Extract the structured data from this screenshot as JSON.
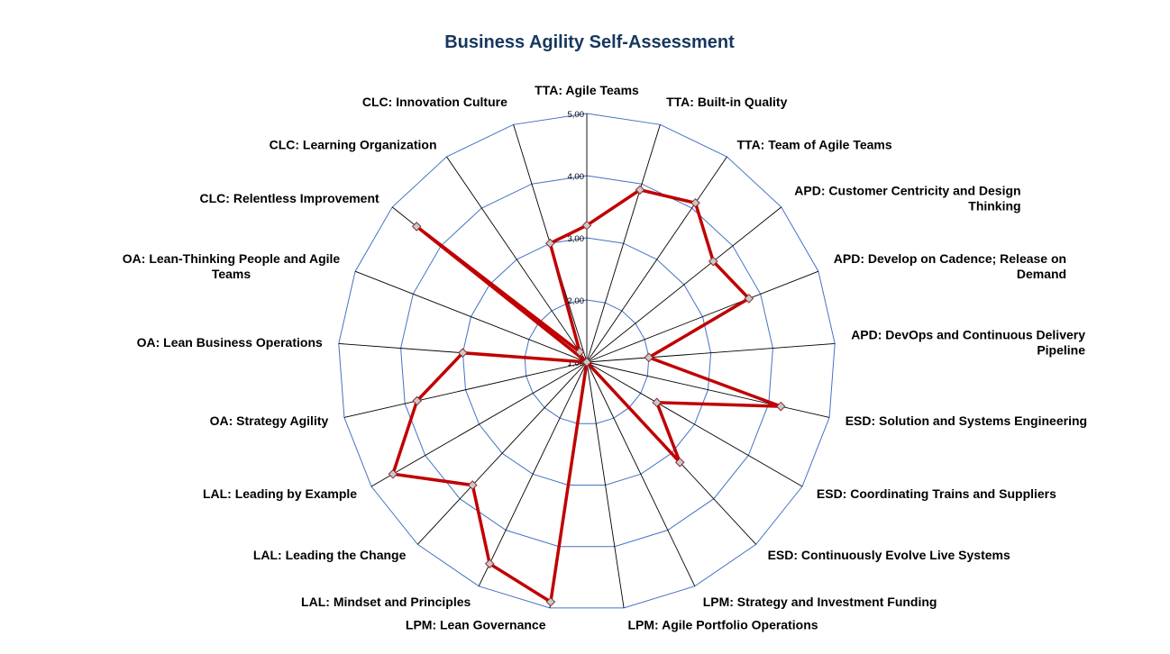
{
  "chart_data": {
    "type": "radar",
    "title": "Business Agility  Self-Assessment",
    "rlim": [
      1,
      5
    ],
    "ticks": [
      "1,00",
      "2,00",
      "3,00",
      "4,00",
      "5,00"
    ],
    "grid": true,
    "series_color": "#C00000",
    "gridline_color": "#4472C4",
    "categories": [
      [
        "TTA: Agile Teams"
      ],
      [
        "TTA: Built-in Quality"
      ],
      [
        "TTA: Team of Agile Teams"
      ],
      [
        "APD: Customer Centricity and Design",
        "Thinking"
      ],
      [
        "APD: Develop on Cadence; Release on",
        "Demand"
      ],
      [
        "APD: DevOps and Continuous Delivery",
        "Pipeline"
      ],
      [
        "ESD: Solution and Systems Engineering"
      ],
      [
        "ESD: Coordinating Trains and Suppliers"
      ],
      [
        "ESD: Continuously Evolve Live Systems"
      ],
      [
        "LPM: Strategy and Investment Funding"
      ],
      [
        "LPM: Agile Portfolio Operations"
      ],
      [
        "LPM: Lean Governance"
      ],
      [
        "LAL: Mindset and Principles"
      ],
      [
        "LAL: Leading the Change"
      ],
      [
        "LAL: Leading by Example"
      ],
      [
        "OA:  Strategy Agility"
      ],
      [
        "OA: Lean Business Operations"
      ],
      [
        "OA: Lean-Thinking People and Agile",
        "Teams"
      ],
      [
        "CLC: Relentless Improvement"
      ],
      [
        "CLC: Learning Organization"
      ],
      [
        "CLC: Innovation Culture"
      ]
    ],
    "series": [
      {
        "values": [
          3.2,
          3.9,
          4.1,
          3.6,
          3.8,
          2.0,
          4.2,
          2.3,
          3.2,
          1.0,
          1.0,
          4.9,
          4.6,
          3.7,
          4.6,
          3.8,
          3.0,
          1.0,
          4.5,
          1.2,
          3.0
        ]
      }
    ]
  }
}
